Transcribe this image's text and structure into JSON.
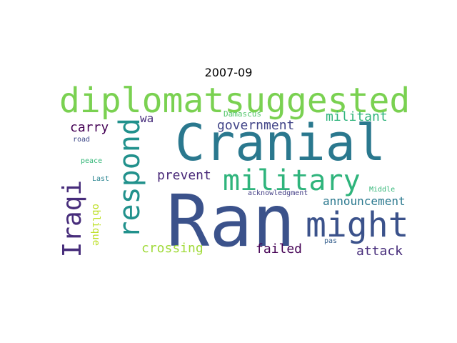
{
  "title": "2007-09",
  "colors": {
    "ran": "#3b528b",
    "cranial": "#2a788e",
    "diplomatsuggested": "#7ad151",
    "respond": "#21918c",
    "might": "#3b528b",
    "military": "#2fb47c",
    "iraqi": "#472d7b",
    "government": "#414487",
    "militant": "#2fb47c",
    "carry": "#440154",
    "prevent": "#482878",
    "announcement": "#2a788e",
    "failed": "#440154",
    "attack": "#472d7b",
    "crossing": "#a0da39",
    "oblique": "#bddf26",
    "wa": "#472d7b",
    "damascus": "#52c569",
    "road": "#3e4989",
    "peace": "#35b779",
    "last": "#26828e",
    "acknowledgment": "#433e85",
    "middle": "#35b779",
    "pas": "#355f8d"
  },
  "words": {
    "ran": "Ran",
    "cranial": "Cranial",
    "diplomatsuggested": "diplomatsuggested",
    "respond": "respond",
    "might": "might",
    "military": "military",
    "iraqi": "Iraqi",
    "government": "government",
    "militant": "militant",
    "carry": "carry",
    "prevent": "prevent",
    "announcement": "announcement",
    "failed": "failed",
    "attack": "attack",
    "crossing": "crossing",
    "oblique": "oblique",
    "wa": "wa",
    "damascus": "Damascus",
    "road": "road",
    "peace": "peace",
    "last": "Last",
    "acknowledgment": "acknowledgment",
    "middle": "Middle",
    "pas": "pas"
  }
}
